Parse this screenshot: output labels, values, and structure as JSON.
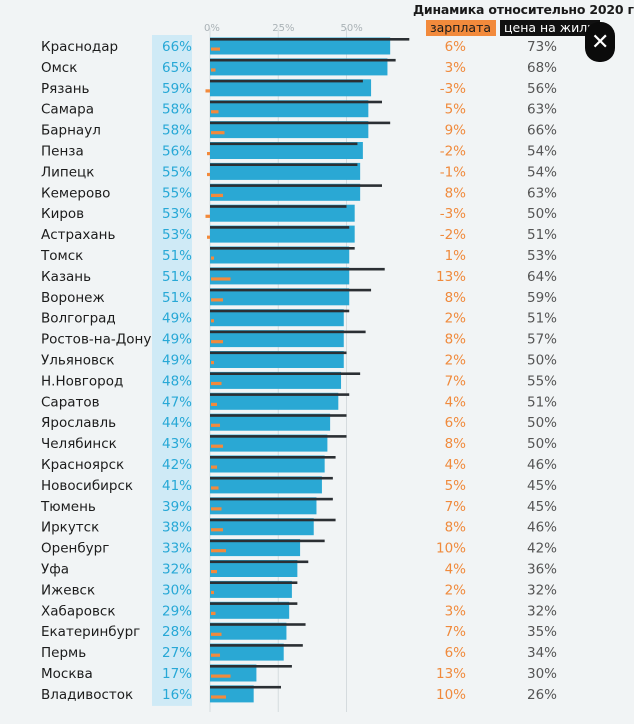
{
  "legend": {
    "title": "Динамика относительно 2020 г",
    "salary_label": "зарплата",
    "price_label": "цена на жилье",
    "close_icon": "close-icon"
  },
  "colors": {
    "bar": "#2aa8d4",
    "salary": "#f28a3c",
    "price": "#2b2f33",
    "total_band": "#cfeaf6",
    "total_text": "#27a8d6"
  },
  "chart_data": {
    "type": "bar",
    "xlim": [
      0,
      100
    ],
    "x_ticks": [
      "0%",
      "25%",
      "50%"
    ],
    "x_tick_values": [
      0,
      25,
      50
    ],
    "categories": [
      "Краснодар",
      "Омск",
      "Рязань",
      "Самара",
      "Барнаул",
      "Пенза",
      "Липецк",
      "Кемерово",
      "Киров",
      "Астрахань",
      "Томск",
      "Казань",
      "Воронеж",
      "Волгоград",
      "Ростов-на-Дону",
      "Ульяновск",
      "Н.Новгород",
      "Саратов",
      "Ярославль",
      "Челябинск",
      "Красноярск",
      "Новосибирск",
      "Тюмень",
      "Иркутск",
      "Оренбург",
      "Уфа",
      "Ижевск",
      "Хабаровск",
      "Екатеринбург",
      "Пермь",
      "Москва",
      "Владивосток"
    ],
    "series": [
      {
        "values": [
          66,
          65,
          59,
          58,
          58,
          56,
          55,
          55,
          53,
          53,
          51,
          51,
          51,
          49,
          49,
          49,
          48,
          47,
          44,
          43,
          42,
          41,
          39,
          38,
          33,
          32,
          30,
          29,
          28,
          27,
          17,
          16
        ],
        "labels": [
          "66%",
          "65%",
          "59%",
          "58%",
          "58%",
          "56%",
          "55%",
          "55%",
          "53%",
          "53%",
          "51%",
          "51%",
          "51%",
          "49%",
          "49%",
          "49%",
          "48%",
          "47%",
          "44%",
          "43%",
          "42%",
          "41%",
          "39%",
          "38%",
          "33%",
          "32%",
          "30%",
          "29%",
          "28%",
          "27%",
          "17%",
          "16%"
        ]
      },
      {
        "name": "зарплата",
        "values": [
          6,
          3,
          -3,
          5,
          9,
          -2,
          -1,
          8,
          -3,
          -2,
          1,
          13,
          8,
          2,
          8,
          2,
          7,
          4,
          6,
          8,
          4,
          5,
          7,
          8,
          10,
          4,
          2,
          3,
          7,
          6,
          13,
          10
        ],
        "labels": [
          "6%",
          "3%",
          "-3%",
          "5%",
          "9%",
          "-2%",
          "-1%",
          "8%",
          "-3%",
          "-2%",
          "1%",
          "13%",
          "8%",
          "2%",
          "8%",
          "2%",
          "7%",
          "4%",
          "6%",
          "8%",
          "4%",
          "5%",
          "7%",
          "8%",
          "10%",
          "4%",
          "2%",
          "3%",
          "7%",
          "6%",
          "13%",
          "10%"
        ]
      },
      {
        "name": "цена на жилье",
        "values": [
          73,
          68,
          56,
          63,
          66,
          54,
          54,
          63,
          50,
          51,
          53,
          64,
          59,
          51,
          57,
          50,
          55,
          51,
          50,
          50,
          46,
          45,
          45,
          46,
          42,
          36,
          32,
          32,
          35,
          34,
          30,
          26
        ],
        "labels": [
          "73%",
          "68%",
          "56%",
          "63%",
          "66%",
          "54%",
          "54%",
          "63%",
          "50%",
          "51%",
          "53%",
          "64%",
          "59%",
          "51%",
          "57%",
          "50%",
          "55%",
          "51%",
          "50%",
          "50%",
          "46%",
          "45%",
          "45%",
          "46%",
          "42%",
          "36%",
          "32%",
          "32%",
          "35%",
          "34%",
          "30%",
          "26%"
        ]
      }
    ]
  }
}
